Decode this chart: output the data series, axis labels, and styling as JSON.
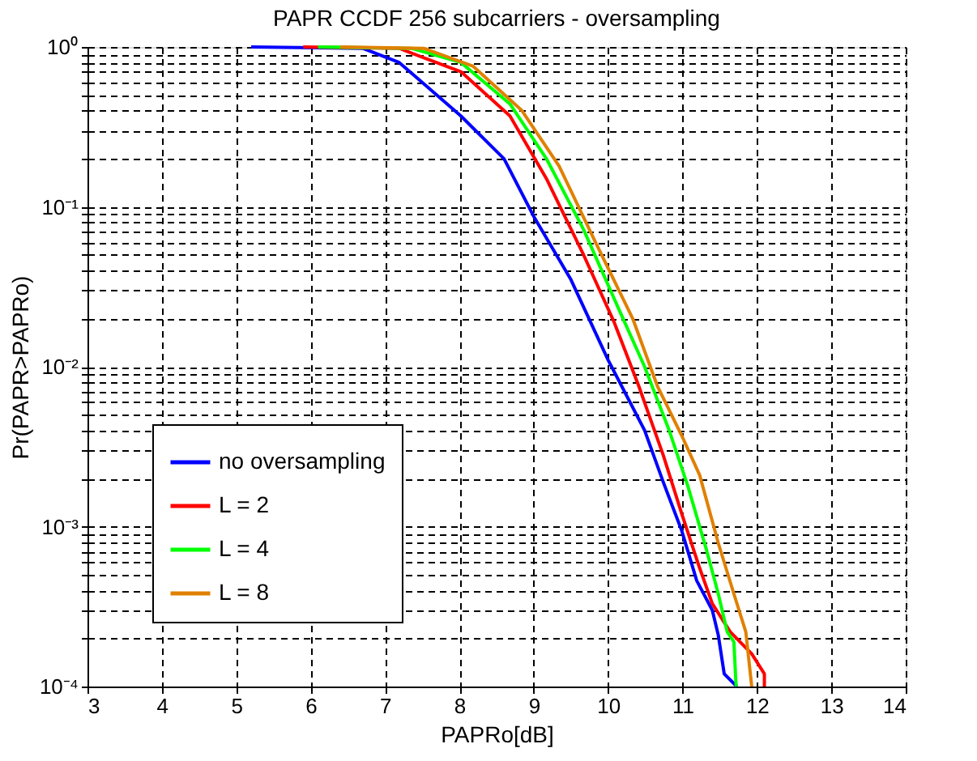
{
  "chart_data": {
    "type": "line",
    "title": "PAPR CCDF 256 subcarriers - oversampling",
    "xlabel": "PAPRo[dB]",
    "ylabel": "Pr(PAPR>PAPRo)",
    "series": [
      {
        "name": "no oversampling",
        "color": "#0000ff",
        "x": [
          5.2,
          6.7,
          7.19,
          8.02,
          8.6,
          9.0,
          9.5,
          10.0,
          10.49,
          10.74,
          10.99,
          11.19,
          11.4,
          11.48,
          11.56,
          11.73
        ],
        "values": [
          1,
          0.98,
          0.8,
          0.37,
          0.2,
          0.087,
          0.035,
          0.011,
          0.004,
          0.0019,
          0.00094,
          0.00046,
          0.0003,
          0.00021,
          0.00012,
          0.0001
        ]
      },
      {
        "name": "L = 2",
        "color": "#ff0000",
        "x": [
          5.9,
          7.19,
          8.02,
          8.68,
          9.17,
          9.67,
          10.08,
          10.41,
          10.74,
          10.99,
          11.23,
          11.4,
          11.64,
          11.93,
          12.1,
          12.1
        ],
        "values": [
          1,
          0.98,
          0.7,
          0.37,
          0.15,
          0.05,
          0.019,
          0.0076,
          0.0028,
          0.0012,
          0.00055,
          0.00033,
          0.00022,
          0.00016,
          0.00012,
          0.0001
        ]
      },
      {
        "name": "L = 4",
        "color": "#00ff00",
        "x": [
          6.1,
          7.36,
          8.02,
          8.68,
          9.17,
          9.67,
          10.16,
          10.49,
          10.82,
          11.07,
          11.32,
          11.48,
          11.6,
          11.69,
          11.72
        ],
        "values": [
          1,
          0.98,
          0.8,
          0.44,
          0.2,
          0.072,
          0.022,
          0.01,
          0.004,
          0.0018,
          0.00072,
          0.00038,
          0.00022,
          0.00019,
          0.0001
        ]
      },
      {
        "name": "L = 8",
        "color": "#e08000",
        "x": [
          6.4,
          7.52,
          8.18,
          8.84,
          9.34,
          9.83,
          10.33,
          10.66,
          10.99,
          11.23,
          11.48,
          11.69,
          11.85,
          11.93
        ],
        "values": [
          1,
          0.98,
          0.76,
          0.4,
          0.18,
          0.06,
          0.02,
          0.0076,
          0.0037,
          0.0021,
          0.00079,
          0.00038,
          0.00022,
          0.0001
        ]
      }
    ],
    "xlim": [
      3,
      14
    ],
    "xticks": [
      3,
      4,
      5,
      6,
      7,
      8,
      9,
      10,
      11,
      12,
      13,
      14
    ],
    "ylim": [
      0.0001,
      1
    ],
    "log": "y",
    "yticks": [
      {
        "value": 0.0001,
        "label": "10⁻⁴"
      },
      {
        "value": 0.0002,
        "label": null
      },
      {
        "value": 0.0003,
        "label": null
      },
      {
        "value": 0.0004,
        "label": null
      },
      {
        "value": 0.0005,
        "label": null
      },
      {
        "value": 0.0006,
        "label": null
      },
      {
        "value": 0.0007,
        "label": null
      },
      {
        "value": 0.0008,
        "label": null
      },
      {
        "value": 0.0009,
        "label": null
      },
      {
        "value": 0.001,
        "label": "10⁻³"
      },
      {
        "value": 0.002,
        "label": null
      },
      {
        "value": 0.003,
        "label": null
      },
      {
        "value": 0.004,
        "label": null
      },
      {
        "value": 0.005,
        "label": null
      },
      {
        "value": 0.006,
        "label": null
      },
      {
        "value": 0.007,
        "label": null
      },
      {
        "value": 0.008,
        "label": null
      },
      {
        "value": 0.009,
        "label": null
      },
      {
        "value": 0.01,
        "label": "10⁻²"
      },
      {
        "value": 0.02,
        "label": null
      },
      {
        "value": 0.03,
        "label": null
      },
      {
        "value": 0.04,
        "label": null
      },
      {
        "value": 0.05,
        "label": null
      },
      {
        "value": 0.06,
        "label": null
      },
      {
        "value": 0.07,
        "label": null
      },
      {
        "value": 0.08,
        "label": null
      },
      {
        "value": 0.09,
        "label": null
      },
      {
        "value": 0.1,
        "label": "10⁻¹"
      },
      {
        "value": 0.2,
        "label": null
      },
      {
        "value": 0.3,
        "label": null
      },
      {
        "value": 0.4,
        "label": null
      },
      {
        "value": 0.5,
        "label": null
      },
      {
        "value": 0.6,
        "label": null
      },
      {
        "value": 0.7,
        "label": null
      },
      {
        "value": 0.8,
        "label": null
      },
      {
        "value": 0.9,
        "label": null
      },
      {
        "value": 1,
        "label": "10⁰"
      }
    ],
    "grid": true,
    "legend": "bottom left",
    "line_style": "solid",
    "marker": "none"
  }
}
